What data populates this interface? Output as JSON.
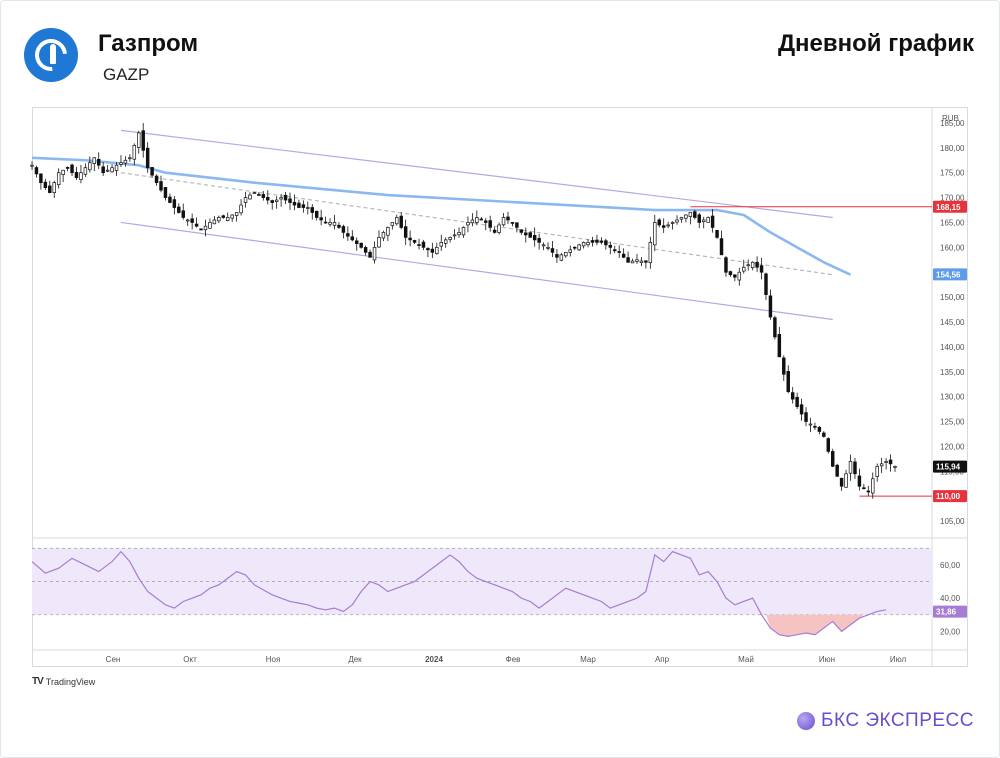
{
  "header": {
    "company": "Газпром",
    "ticker": "GAZP",
    "chart_kind": "Дневной график"
  },
  "footer": {
    "tradingview": "TradingView",
    "brand": "БКС ЭКСПРЕСС"
  },
  "colors": {
    "up_candle": "#ffffff",
    "down_candle": "#111111",
    "wick": "#111111",
    "moving_average": "#8bb8ee",
    "channel": "#b9a6e3",
    "midline": "#b8b8b8",
    "level": "#e8323c",
    "rsi_line": "#a77cd3",
    "rsi_band": "#efe8fa",
    "rsi_oversold": "#f6c3c3",
    "brand": "#6a4ccf",
    "logo": "#1e78d4"
  },
  "chart_data": [
    {
      "type": "candlestick",
      "currency": "RUB",
      "ylim": [
        102,
        188
      ],
      "yticks": [
        "185,00",
        "180,00",
        "175,00",
        "170,00",
        "165,00",
        "160,00",
        "155,00",
        "150,00",
        "145,00",
        "140,00",
        "135,00",
        "130,00",
        "125,00",
        "120,00",
        "115,00",
        "110,00",
        "105,00"
      ],
      "x_labels": [
        "Сен",
        "Окт",
        "Ноя",
        "Дек",
        "2024",
        "Фев",
        "Мар",
        "Апр",
        "Май",
        "Июн",
        "Июл"
      ],
      "price_labels": [
        {
          "value": 168.15,
          "text": "168,15",
          "color": "#e8323c"
        },
        {
          "value": 154.56,
          "text": "154,56",
          "color": "#5e9be8"
        },
        {
          "value": 115.94,
          "text": "115,94",
          "color": "#111111"
        },
        {
          "value": 110.0,
          "text": "110,00",
          "color": "#e8323c"
        }
      ],
      "levels": [
        168.15,
        110.0
      ],
      "close_path": [
        [
          0,
          176.5
        ],
        [
          2,
          173
        ],
        [
          4,
          171
        ],
        [
          6,
          175
        ],
        [
          8,
          176
        ],
        [
          10,
          174
        ],
        [
          12,
          176
        ],
        [
          14,
          178
        ],
        [
          16,
          175
        ],
        [
          18,
          176
        ],
        [
          20,
          177
        ],
        [
          22,
          178
        ],
        [
          24,
          183
        ],
        [
          26,
          176
        ],
        [
          28,
          173
        ],
        [
          30,
          170
        ],
        [
          32,
          168
        ],
        [
          34,
          166
        ],
        [
          36,
          165
        ],
        [
          38,
          163.5
        ],
        [
          40,
          165
        ],
        [
          42,
          166
        ],
        [
          44,
          166
        ],
        [
          46,
          167
        ],
        [
          48,
          170
        ],
        [
          50,
          171
        ],
        [
          52,
          170
        ],
        [
          54,
          169
        ],
        [
          56,
          170
        ],
        [
          58,
          169
        ],
        [
          60,
          168
        ],
        [
          62,
          168
        ],
        [
          64,
          166
        ],
        [
          66,
          165
        ],
        [
          68,
          165
        ],
        [
          70,
          163
        ],
        [
          72,
          161.5
        ],
        [
          74,
          160
        ],
        [
          76,
          158
        ],
        [
          78,
          162
        ],
        [
          80,
          164
        ],
        [
          82,
          166
        ],
        [
          84,
          162
        ],
        [
          86,
          161
        ],
        [
          88,
          160
        ],
        [
          90,
          159
        ],
        [
          92,
          161
        ],
        [
          94,
          162
        ],
        [
          96,
          163
        ],
        [
          98,
          165
        ],
        [
          100,
          166
        ],
        [
          102,
          165
        ],
        [
          104,
          163
        ],
        [
          106,
          166
        ],
        [
          108,
          165
        ],
        [
          110,
          163
        ],
        [
          112,
          162
        ],
        [
          114,
          161
        ],
        [
          116,
          160
        ],
        [
          118,
          158
        ],
        [
          120,
          159
        ],
        [
          122,
          160
        ],
        [
          124,
          161
        ],
        [
          126,
          161
        ],
        [
          128,
          161
        ],
        [
          130,
          160
        ],
        [
          132,
          159
        ],
        [
          134,
          157
        ],
        [
          136,
          157.5
        ],
        [
          138,
          157
        ],
        [
          140,
          165
        ],
        [
          142,
          164
        ],
        [
          144,
          165
        ],
        [
          146,
          166
        ],
        [
          148,
          167
        ],
        [
          150,
          165
        ],
        [
          152,
          166
        ],
        [
          154,
          162
        ],
        [
          156,
          155
        ],
        [
          158,
          154
        ],
        [
          160,
          156
        ],
        [
          162,
          157
        ],
        [
          164,
          155
        ],
        [
          166,
          146
        ],
        [
          168,
          138
        ],
        [
          170,
          131
        ],
        [
          172,
          128
        ],
        [
          174,
          125
        ],
        [
          176,
          124
        ],
        [
          178,
          122
        ],
        [
          180,
          116
        ],
        [
          182,
          112
        ],
        [
          184,
          117
        ],
        [
          186,
          112
        ],
        [
          188,
          111
        ],
        [
          190,
          116
        ],
        [
          192,
          117
        ],
        [
          194,
          116
        ]
      ],
      "moving_average": [
        [
          0,
          178
        ],
        [
          12,
          177.5
        ],
        [
          24,
          176.5
        ],
        [
          30,
          175
        ],
        [
          50,
          173
        ],
        [
          80,
          170.5
        ],
        [
          110,
          169
        ],
        [
          140,
          167.5
        ],
        [
          150,
          167.5
        ],
        [
          154,
          167.5
        ],
        [
          160,
          166.5
        ],
        [
          166,
          163
        ],
        [
          172,
          160
        ],
        [
          178,
          157
        ],
        [
          184,
          154.5
        ]
      ],
      "channel_upper": [
        [
          20,
          183.5
        ],
        [
          180,
          166
        ]
      ],
      "channel_lower": [
        [
          20,
          165
        ],
        [
          180,
          145.5
        ]
      ],
      "midline": [
        [
          20,
          175
        ],
        [
          180,
          154.5
        ]
      ],
      "end_index": 194
    },
    {
      "type": "line",
      "indicator": "RSI",
      "ylim": [
        10,
        75
      ],
      "yticks": [
        "60,00",
        "40,00",
        "20,00"
      ],
      "band": [
        30,
        70
      ],
      "last_label": {
        "value": 31.86,
        "text": "31,86"
      },
      "values": [
        [
          0,
          62
        ],
        [
          3,
          55
        ],
        [
          6,
          58
        ],
        [
          9,
          64
        ],
        [
          12,
          60
        ],
        [
          15,
          56
        ],
        [
          18,
          62
        ],
        [
          20,
          68
        ],
        [
          22,
          62
        ],
        [
          24,
          52
        ],
        [
          26,
          44
        ],
        [
          28,
          40
        ],
        [
          30,
          36
        ],
        [
          32,
          34
        ],
        [
          34,
          38
        ],
        [
          36,
          40
        ],
        [
          38,
          42
        ],
        [
          40,
          46
        ],
        [
          42,
          48
        ],
        [
          44,
          52
        ],
        [
          46,
          56
        ],
        [
          48,
          54
        ],
        [
          50,
          48
        ],
        [
          52,
          45
        ],
        [
          54,
          42
        ],
        [
          56,
          40
        ],
        [
          58,
          38
        ],
        [
          60,
          37
        ],
        [
          62,
          36
        ],
        [
          64,
          34
        ],
        [
          66,
          33
        ],
        [
          68,
          34
        ],
        [
          70,
          32
        ],
        [
          72,
          36
        ],
        [
          74,
          44
        ],
        [
          76,
          50
        ],
        [
          78,
          48
        ],
        [
          80,
          44
        ],
        [
          82,
          46
        ],
        [
          84,
          48
        ],
        [
          86,
          50
        ],
        [
          88,
          54
        ],
        [
          90,
          58
        ],
        [
          92,
          62
        ],
        [
          94,
          66
        ],
        [
          96,
          62
        ],
        [
          98,
          56
        ],
        [
          100,
          52
        ],
        [
          102,
          50
        ],
        [
          104,
          48
        ],
        [
          106,
          46
        ],
        [
          108,
          44
        ],
        [
          110,
          40
        ],
        [
          112,
          38
        ],
        [
          114,
          34
        ],
        [
          116,
          38
        ],
        [
          118,
          42
        ],
        [
          120,
          46
        ],
        [
          122,
          44
        ],
        [
          124,
          42
        ],
        [
          126,
          40
        ],
        [
          128,
          38
        ],
        [
          130,
          34
        ],
        [
          132,
          36
        ],
        [
          134,
          38
        ],
        [
          136,
          40
        ],
        [
          138,
          44
        ],
        [
          140,
          66
        ],
        [
          142,
          62
        ],
        [
          144,
          68
        ],
        [
          146,
          66
        ],
        [
          148,
          64
        ],
        [
          150,
          54
        ],
        [
          152,
          56
        ],
        [
          154,
          50
        ],
        [
          156,
          40
        ],
        [
          158,
          36
        ],
        [
          160,
          38
        ],
        [
          162,
          40
        ],
        [
          164,
          30
        ],
        [
          166,
          22
        ],
        [
          168,
          18
        ],
        [
          170,
          17
        ],
        [
          172,
          18
        ],
        [
          174,
          19
        ],
        [
          176,
          18
        ],
        [
          178,
          22
        ],
        [
          180,
          26
        ],
        [
          182,
          20
        ],
        [
          184,
          24
        ],
        [
          186,
          28
        ],
        [
          188,
          30
        ],
        [
          190,
          32
        ],
        [
          192,
          33
        ]
      ]
    }
  ]
}
